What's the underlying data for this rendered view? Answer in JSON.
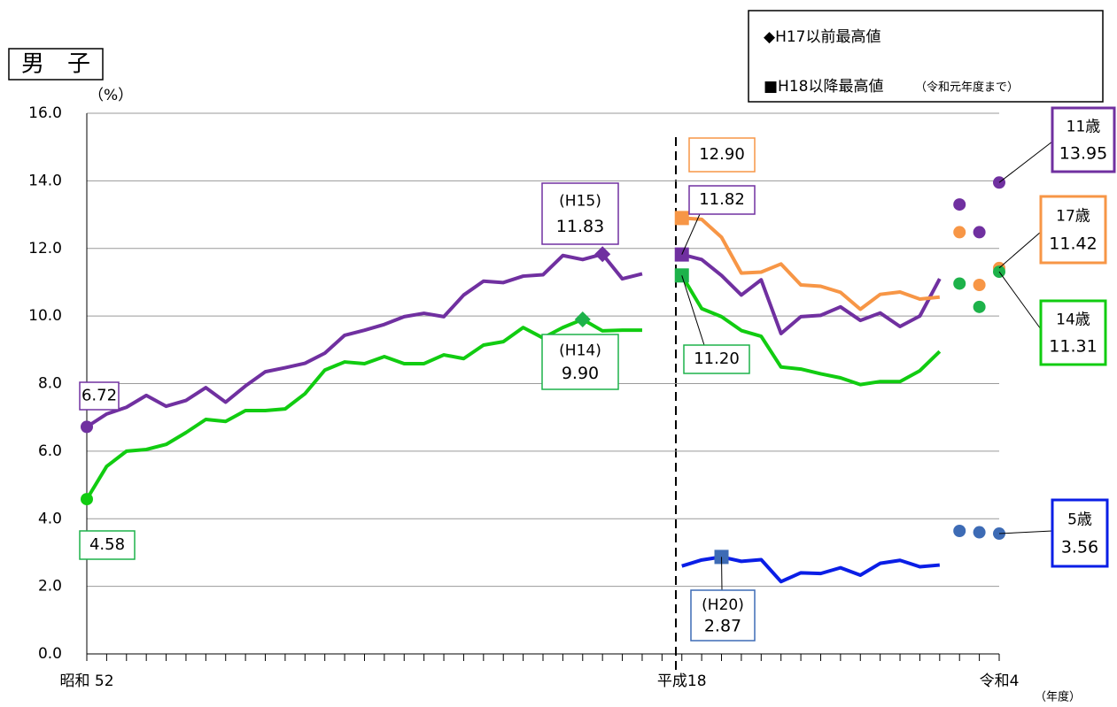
{
  "chart_data": {
    "type": "line",
    "title": "男　子",
    "y_unit": "（%）",
    "x_unit": "（年度）",
    "legend_notes": [
      "◆H17以前最高値",
      "■H18以降最高値",
      "（令和元年度まで）"
    ],
    "categories": [
      "昭和 52",
      null,
      null,
      null,
      null,
      null,
      null,
      null,
      null,
      null,
      null,
      null,
      null,
      null,
      null,
      null,
      null,
      null,
      null,
      null,
      null,
      null,
      null,
      null,
      null,
      null,
      null,
      null,
      null,
      null,
      "平成18",
      null,
      null,
      null,
      null,
      null,
      null,
      null,
      null,
      null,
      null,
      null,
      null,
      null,
      null,
      null,
      "令和4"
    ],
    "ylim": [
      0,
      16
    ],
    "yticks": [
      {
        "value": 0,
        "label": "0.0"
      },
      {
        "value": 2,
        "label": "2.0"
      },
      {
        "value": 4,
        "label": "4.0"
      },
      {
        "value": 6,
        "label": "6.0"
      },
      {
        "value": 8,
        "label": "8.0"
      },
      {
        "value": 10,
        "label": "10.0"
      },
      {
        "value": 12,
        "label": "12.0"
      },
      {
        "value": 14,
        "label": "14.0"
      },
      {
        "value": 16,
        "label": "16.0"
      }
    ],
    "grid": true,
    "series": [
      {
        "name": "11歳",
        "color": "#7030a0",
        "marker_color": "#7030a0",
        "values": [
          6.72,
          7.1,
          7.3,
          7.65,
          7.33,
          7.5,
          7.88,
          7.45,
          7.93,
          8.35,
          8.47,
          8.6,
          8.9,
          9.43,
          9.58,
          9.75,
          9.98,
          10.08,
          9.98,
          10.62,
          11.03,
          10.99,
          11.18,
          11.22,
          11.79,
          11.67,
          11.83,
          11.1,
          11.25,
          null,
          11.82,
          11.67,
          11.2,
          10.62,
          11.07,
          9.48,
          9.98,
          10.02,
          10.27,
          9.87,
          10.09,
          9.69,
          10.0,
          11.1,
          null,
          null,
          null
        ],
        "points": [
          null,
          null,
          null,
          null,
          null,
          null,
          null,
          null,
          null,
          null,
          null,
          null,
          null,
          null,
          null,
          null,
          null,
          null,
          null,
          null,
          null,
          null,
          null,
          null,
          null,
          null,
          null,
          null,
          null,
          null,
          null,
          null,
          null,
          null,
          null,
          null,
          null,
          null,
          null,
          null,
          null,
          null,
          null,
          null,
          13.3,
          12.48,
          13.95
        ],
        "markers": {
          "0": "circle",
          "26": "diamond",
          "30": "square"
        },
        "value_labels": {
          "0": "6.72",
          "26": "11.83",
          "30": "11.82",
          "46": "13.95"
        },
        "notes": {
          "26": "(H15)"
        }
      },
      {
        "name": "17歳",
        "color": "#f79646",
        "marker_color": "#f79646",
        "values": [
          null,
          null,
          null,
          null,
          null,
          null,
          null,
          null,
          null,
          null,
          null,
          null,
          null,
          null,
          null,
          null,
          null,
          null,
          null,
          null,
          null,
          null,
          null,
          null,
          null,
          null,
          null,
          null,
          null,
          null,
          12.9,
          12.86,
          12.33,
          11.27,
          11.3,
          11.54,
          10.92,
          10.88,
          10.7,
          10.2,
          10.64,
          10.71,
          10.5,
          10.56,
          null,
          null,
          null
        ],
        "points": [
          null,
          null,
          null,
          null,
          null,
          null,
          null,
          null,
          null,
          null,
          null,
          null,
          null,
          null,
          null,
          null,
          null,
          null,
          null,
          null,
          null,
          null,
          null,
          null,
          null,
          null,
          null,
          null,
          null,
          null,
          null,
          null,
          null,
          null,
          null,
          null,
          null,
          null,
          null,
          null,
          null,
          null,
          null,
          null,
          12.48,
          10.92,
          11.42
        ],
        "markers": {
          "30": "square"
        },
        "value_labels": {
          "30": "12.90",
          "46": "11.42"
        },
        "notes": {}
      },
      {
        "name": "14歳",
        "color": "#11cc11",
        "marker_color": "#1db24a",
        "values": [
          4.58,
          5.55,
          6.0,
          6.05,
          6.2,
          6.55,
          6.94,
          6.88,
          7.2,
          7.2,
          7.25,
          7.7,
          8.4,
          8.64,
          8.59,
          8.8,
          8.59,
          8.59,
          8.85,
          8.74,
          9.14,
          9.24,
          9.66,
          9.35,
          9.66,
          9.9,
          9.56,
          9.58,
          9.58,
          null,
          11.2,
          10.22,
          9.98,
          9.57,
          9.4,
          8.49,
          8.43,
          8.29,
          8.17,
          7.97,
          8.06,
          8.06,
          8.38,
          8.95,
          null,
          null,
          null
        ],
        "points": [
          null,
          null,
          null,
          null,
          null,
          null,
          null,
          null,
          null,
          null,
          null,
          null,
          null,
          null,
          null,
          null,
          null,
          null,
          null,
          null,
          null,
          null,
          null,
          null,
          null,
          null,
          null,
          null,
          null,
          null,
          null,
          null,
          null,
          null,
          null,
          null,
          null,
          null,
          null,
          null,
          null,
          null,
          null,
          null,
          10.96,
          10.27,
          11.31
        ],
        "markers": {
          "0": "circle",
          "25": "diamond",
          "30": "square"
        },
        "value_labels": {
          "0": "4.58",
          "25": "9.90",
          "30": "11.20",
          "46": "11.31"
        },
        "notes": {
          "25": "(H14)"
        }
      },
      {
        "name": "5歳",
        "color": "#0a1ee6",
        "marker_color": "#3d6bb5",
        "values": [
          null,
          null,
          null,
          null,
          null,
          null,
          null,
          null,
          null,
          null,
          null,
          null,
          null,
          null,
          null,
          null,
          null,
          null,
          null,
          null,
          null,
          null,
          null,
          null,
          null,
          null,
          null,
          null,
          null,
          null,
          2.6,
          2.78,
          2.87,
          2.74,
          2.79,
          2.14,
          2.4,
          2.38,
          2.55,
          2.33,
          2.68,
          2.77,
          2.58,
          2.63,
          null,
          null,
          null
        ],
        "points": [
          null,
          null,
          null,
          null,
          null,
          null,
          null,
          null,
          null,
          null,
          null,
          null,
          null,
          null,
          null,
          null,
          null,
          null,
          null,
          null,
          null,
          null,
          null,
          null,
          null,
          null,
          null,
          null,
          null,
          null,
          null,
          null,
          null,
          null,
          null,
          null,
          null,
          null,
          null,
          null,
          null,
          null,
          null,
          null,
          3.64,
          3.6,
          3.56
        ],
        "markers": {
          "32": "square"
        },
        "value_labels": {
          "32": "2.87",
          "46": "3.56"
        },
        "notes": {
          "32": "(H20)"
        }
      }
    ]
  }
}
